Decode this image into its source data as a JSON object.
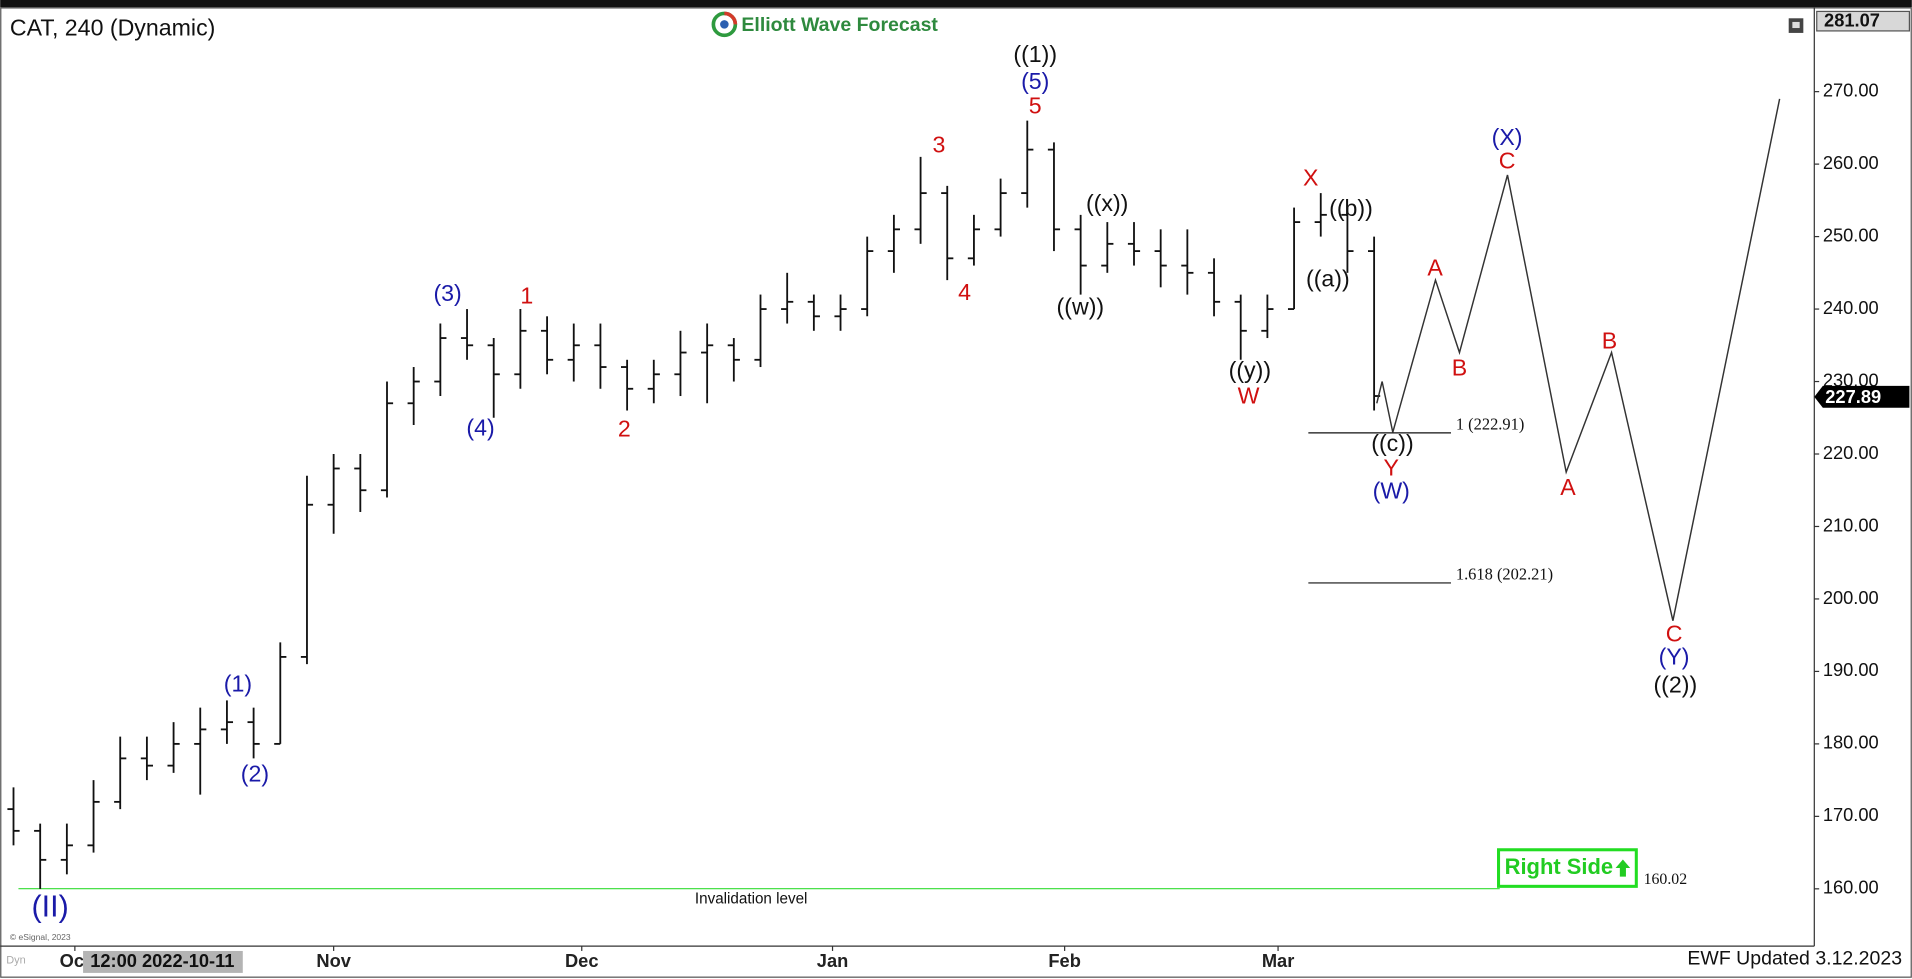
{
  "chart_data": {
    "type": "ohlc",
    "title": "CAT, 240 (Dynamic)",
    "brand": "Elliott Wave Forecast",
    "footer": "EWF Updated 3.12.2023",
    "copyright": "© eSignal, 2023",
    "source_tag": "Dyn",
    "cursor_label": "12:00 2022-10-11",
    "color": "#111111",
    "x": [
      0,
      1,
      2,
      3,
      4,
      5,
      6,
      7,
      8,
      9,
      10,
      11,
      12,
      13,
      14,
      15,
      16,
      17,
      18,
      19,
      20,
      21,
      22,
      23,
      24,
      25,
      26,
      27,
      28,
      29,
      30,
      31,
      32,
      33,
      34,
      35,
      36,
      37,
      38,
      39,
      40,
      41,
      42,
      43,
      44,
      45,
      46,
      47,
      48,
      49,
      50,
      51
    ],
    "open": [
      171,
      168,
      164,
      166,
      172,
      178,
      177,
      180,
      182,
      183,
      180,
      192,
      213,
      218,
      215,
      227,
      230,
      236,
      235,
      231,
      237,
      233,
      235,
      232,
      229,
      231,
      234,
      235,
      233,
      240,
      241,
      239,
      240,
      248,
      251,
      256,
      247,
      251,
      256,
      262,
      251,
      246,
      249,
      248,
      246,
      245,
      241,
      237,
      240,
      252,
      253,
      248
    ],
    "high": [
      174,
      169,
      169,
      175,
      181,
      181,
      183,
      185,
      186,
      185,
      194,
      217,
      220,
      220,
      230,
      232,
      238,
      240,
      236,
      240,
      239,
      238,
      238,
      233,
      233,
      237,
      238,
      236,
      242,
      245,
      242,
      242,
      250,
      253,
      261,
      257,
      253,
      258,
      266,
      263,
      253,
      252,
      252,
      251,
      251,
      247,
      242,
      242,
      254,
      256,
      254,
      250
    ],
    "low": [
      166,
      160,
      162,
      165,
      171,
      175,
      176,
      173,
      180,
      178,
      180,
      191,
      209,
      212,
      214,
      224,
      228,
      233,
      225,
      229,
      231,
      230,
      229,
      226,
      227,
      228,
      227,
      230,
      232,
      238,
      237,
      237,
      239,
      245,
      249,
      244,
      246,
      250,
      254,
      248,
      242,
      245,
      246,
      243,
      242,
      239,
      233,
      236,
      240,
      250,
      245,
      226
    ],
    "close": [
      168,
      164,
      166,
      172,
      178,
      177,
      180,
      182,
      183,
      180,
      192,
      213,
      218,
      215,
      227,
      230,
      236,
      235,
      231,
      237,
      233,
      235,
      232,
      229,
      231,
      234,
      235,
      233,
      240,
      241,
      239,
      240,
      248,
      251,
      256,
      247,
      251,
      256,
      262,
      251,
      246,
      249,
      248,
      246,
      245,
      241,
      237,
      240,
      252,
      253,
      248,
      228
    ],
    "xlim": [
      -0.5,
      67.5
    ],
    "xticks": [
      {
        "value": 2.3,
        "label": "Oct"
      },
      {
        "value": 12,
        "label": "Nov"
      },
      {
        "value": 21.3,
        "label": "Dec"
      },
      {
        "value": 30.7,
        "label": "Jan"
      },
      {
        "value": 39.4,
        "label": "Feb"
      },
      {
        "value": 47.4,
        "label": "Mar"
      }
    ],
    "ylim": [
      152.1,
      281.3
    ],
    "yticks": [
      {
        "value": 160,
        "label": "160.00"
      },
      {
        "value": 170,
        "label": "170.00"
      },
      {
        "value": 180,
        "label": "180.00"
      },
      {
        "value": 190,
        "label": "190.00"
      },
      {
        "value": 200,
        "label": "200.00"
      },
      {
        "value": 210,
        "label": "210.00"
      },
      {
        "value": 220,
        "label": "220.00"
      },
      {
        "value": 230,
        "label": "230.00"
      },
      {
        "value": 240,
        "label": "240.00"
      },
      {
        "value": 250,
        "label": "250.00"
      },
      {
        "value": 260,
        "label": "260.00"
      },
      {
        "value": 270,
        "label": "270.00"
      }
    ],
    "grid": false,
    "high_marker": {
      "value": 281.07,
      "label": "281.07"
    },
    "last_price": {
      "value": 227.89,
      "label": "227.89"
    },
    "levels": [
      {
        "value": 222.91,
        "label": "1 (222.91)"
      },
      {
        "value": 202.21,
        "label": "1.618 (202.21)"
      }
    ],
    "invalidation": {
      "value": 160.02,
      "label": "160.02",
      "text": "Invalidation level",
      "color": "#33dd33"
    },
    "badge": "Right Side",
    "projection": {
      "color": "#333333",
      "x": [
        51.1,
        51.3,
        51.7,
        53.3,
        54.2,
        56.0,
        58.2,
        59.9,
        62.2,
        66.2
      ],
      "values": [
        227,
        230,
        223,
        244,
        234,
        258.5,
        217.5,
        234,
        197,
        269
      ]
    },
    "annotations": [
      {
        "text": "((1))",
        "color": "#111111"
      },
      {
        "text": "(5)",
        "color": "#1a1aa8"
      },
      {
        "text": "5",
        "color": "#d01010"
      },
      {
        "text": "(3)",
        "color": "#1a1aa8"
      },
      {
        "text": "1",
        "color": "#d01010"
      },
      {
        "text": "3",
        "color": "#d01010"
      },
      {
        "text": "((x))",
        "color": "#111111"
      },
      {
        "text": "X",
        "color": "#d01010"
      },
      {
        "text": "((b))",
        "color": "#111111"
      },
      {
        "text": "(X)",
        "color": "#1a1aa8"
      },
      {
        "text": "C",
        "color": "#d01010"
      },
      {
        "text": "((a))",
        "color": "#111111"
      },
      {
        "text": "A",
        "color": "#d01010"
      },
      {
        "text": "4",
        "color": "#d01010"
      },
      {
        "text": "((w))",
        "color": "#111111"
      },
      {
        "text": "(4)",
        "color": "#1a1aa8"
      },
      {
        "text": "2",
        "color": "#d01010"
      },
      {
        "text": "((y))",
        "color": "#111111"
      },
      {
        "text": "W",
        "color": "#d01010"
      },
      {
        "text": "B",
        "color": "#d01010"
      },
      {
        "text": "B",
        "color": "#d01010"
      },
      {
        "text": "((c))",
        "color": "#111111"
      },
      {
        "text": "Y",
        "color": "#d01010"
      },
      {
        "text": "(W)",
        "color": "#1a1aa8"
      },
      {
        "text": "A",
        "color": "#d01010"
      },
      {
        "text": "(1)",
        "color": "#1a1aa8"
      },
      {
        "text": "(2)",
        "color": "#1a1aa8"
      },
      {
        "text": "C",
        "color": "#d01010"
      },
      {
        "text": "(Y)",
        "color": "#1a1aa8"
      },
      {
        "text": "((2))",
        "color": "#111111"
      },
      {
        "text": "(II)",
        "color": "#1a1aa8"
      }
    ]
  }
}
